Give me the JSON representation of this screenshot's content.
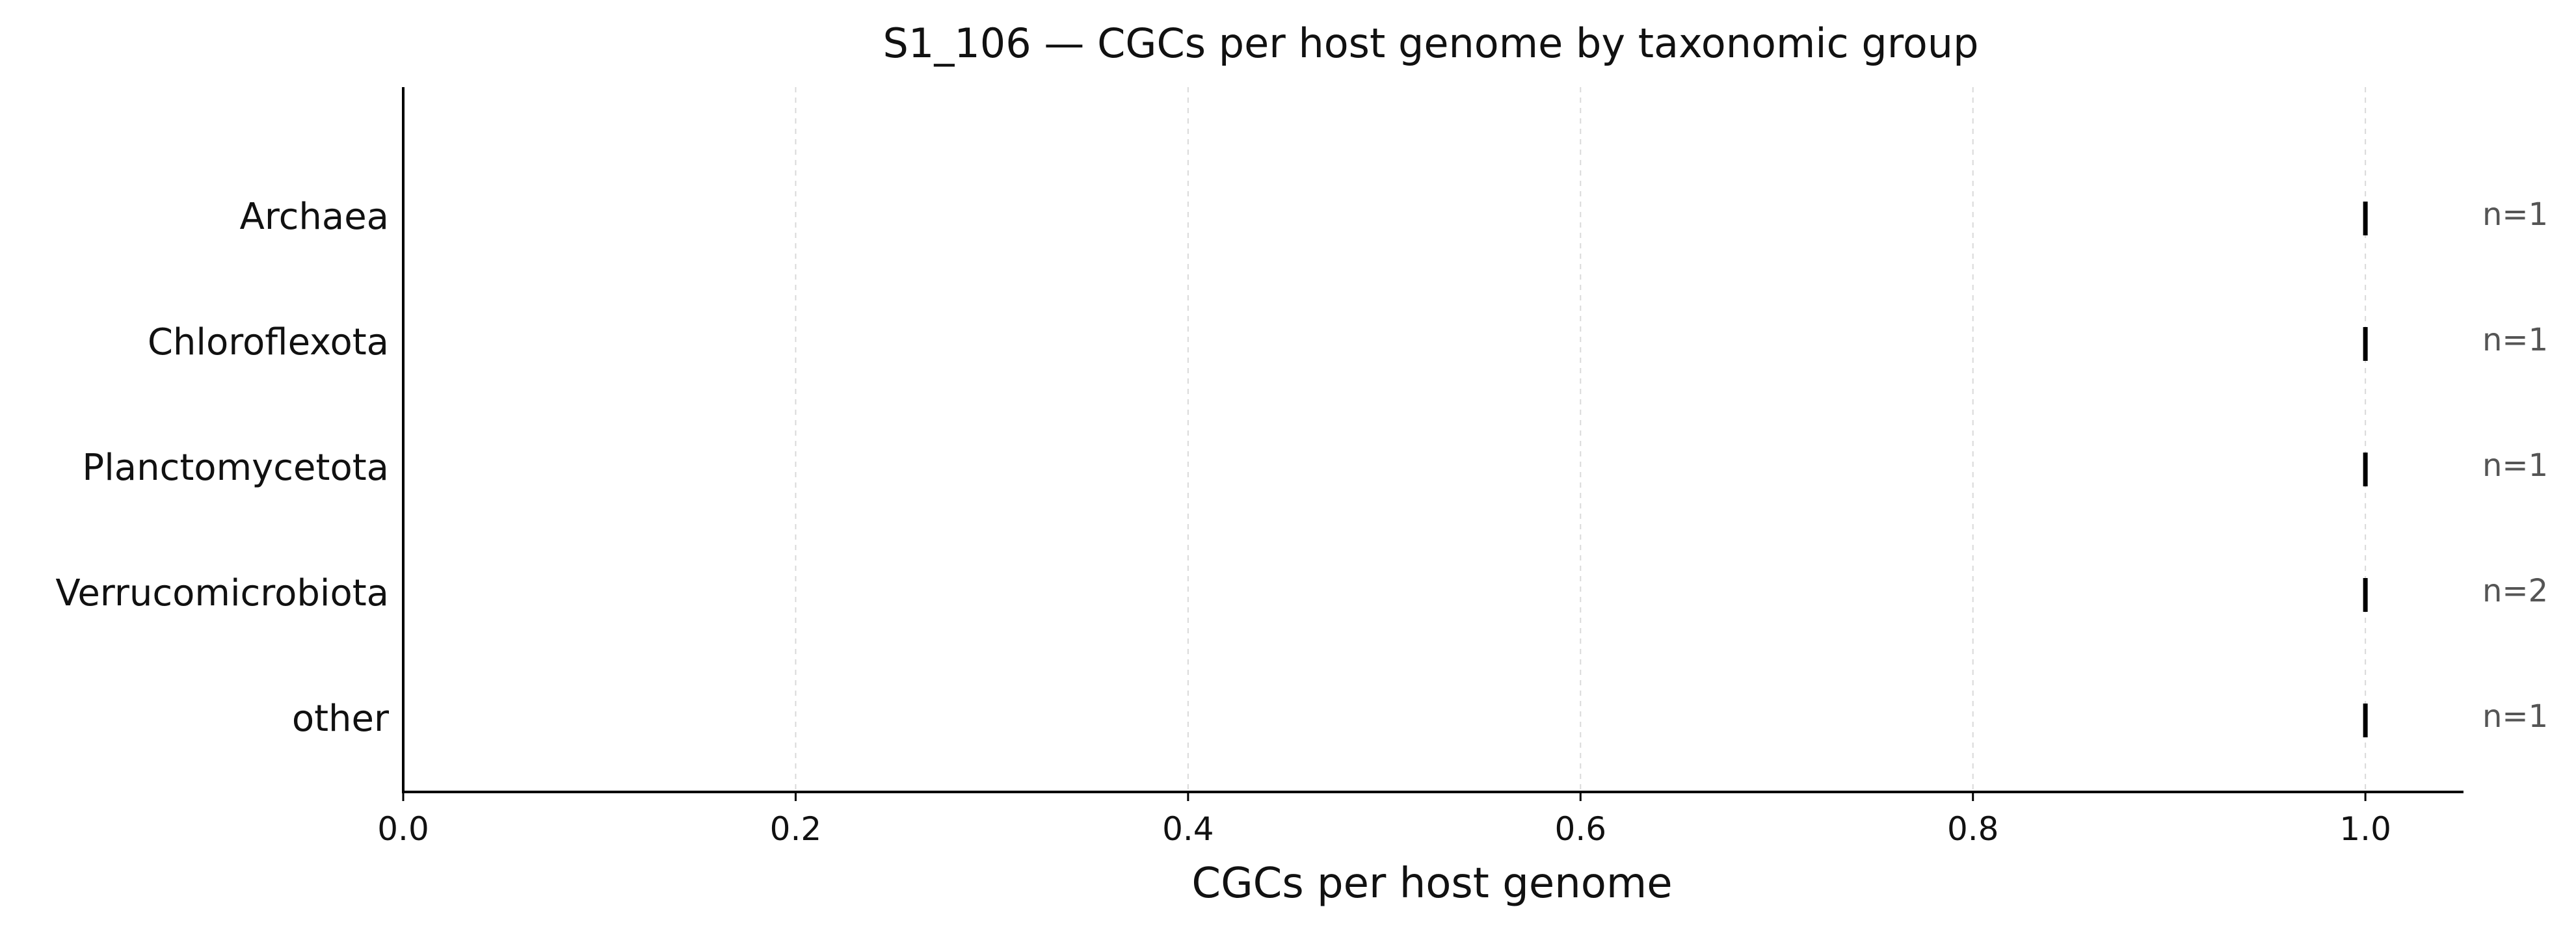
{
  "chart_data": {
    "type": "scatter",
    "title": "S1_106 — CGCs per host genome by taxonomic group",
    "xlabel": "CGCs per host genome",
    "ylabel": "",
    "xlim": [
      0,
      1.05
    ],
    "xticks": [
      0.0,
      0.2,
      0.4,
      0.6,
      0.8,
      1.0
    ],
    "xtick_labels": [
      "0.0",
      "0.2",
      "0.4",
      "0.6",
      "0.8",
      "1.0"
    ],
    "grid": "vertical dashed",
    "categories": [
      "Archaea",
      "Chloroflexota",
      "Planctomycetota",
      "Verrucomicrobiota",
      "other"
    ],
    "values": [
      1.0,
      1.0,
      1.0,
      1.0,
      1.0
    ],
    "counts": [
      "n=1",
      "n=1",
      "n=1",
      "n=2",
      "n=1"
    ],
    "marker_color": "#000000"
  }
}
